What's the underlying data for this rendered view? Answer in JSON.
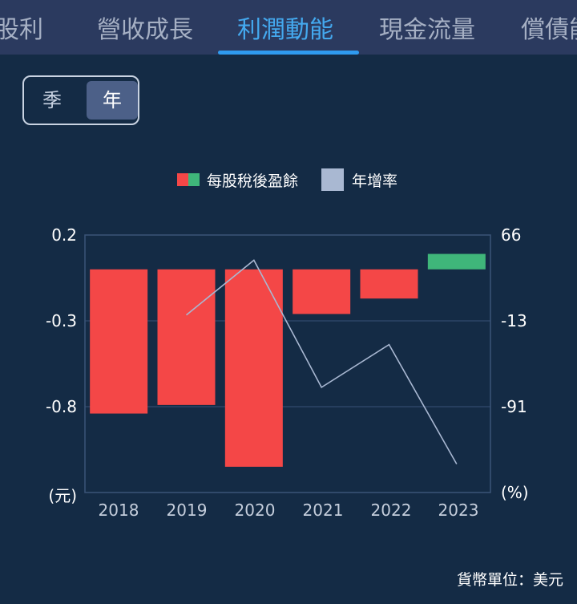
{
  "tabs": [
    {
      "label": "股利",
      "active": false
    },
    {
      "label": "營收成長",
      "active": false
    },
    {
      "label": "利潤動能",
      "active": true
    },
    {
      "label": "現金流量",
      "active": false
    },
    {
      "label": "償債能",
      "active": false
    }
  ],
  "period": {
    "quarter_label": "季",
    "year_label": "年",
    "selected": "年"
  },
  "legend": {
    "eps": "每股稅後盈餘",
    "yoy": "年增率"
  },
  "chart_data": {
    "type": "bar+line",
    "categories": [
      "2018",
      "2019",
      "2020",
      "2021",
      "2022",
      "2023"
    ],
    "series": [
      {
        "name": "每股稅後盈餘",
        "type": "bar",
        "axis": "left",
        "values": [
          -0.84,
          -0.79,
          -1.15,
          -0.26,
          -0.17,
          0.09
        ],
        "positive_color": "#3fb67a",
        "negative_color": "#f44747"
      },
      {
        "name": "年增率",
        "type": "line",
        "axis": "right",
        "values": [
          null,
          -7,
          43,
          -73,
          -34,
          -143
        ],
        "color": "#a9b8d2"
      }
    ],
    "left_axis": {
      "ticks": [
        "0.2",
        "-0.3",
        "-0.8"
      ],
      "unit": "(元)",
      "range": [
        -1.3,
        0.2
      ]
    },
    "right_axis": {
      "ticks": [
        "66",
        "-13",
        "-91"
      ],
      "unit": "(%)",
      "range": [
        -169,
        66
      ]
    },
    "grid": true,
    "legend_position": "top-center"
  },
  "footer": {
    "currency_note": "貨幣單位：美元"
  }
}
